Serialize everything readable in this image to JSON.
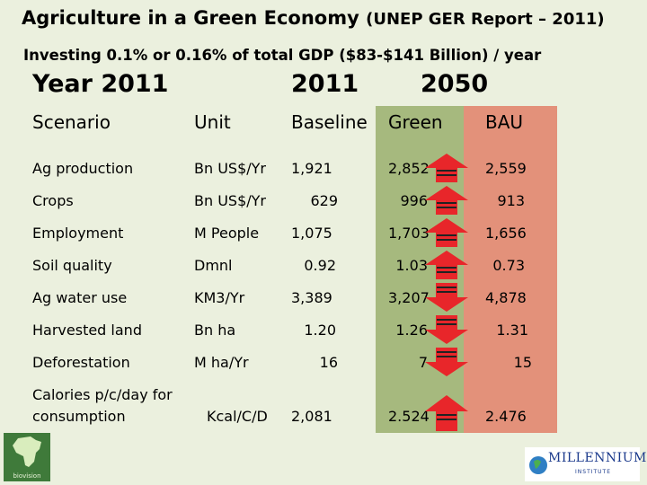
{
  "title": {
    "main": "Agriculture in a Green Economy",
    "report": "(UNEP GER Report – 2011)"
  },
  "subtitle": "Investing 0.1% or 0.16% of total GDP ($83-$141 Billion) / year",
  "year_headers": {
    "left": "Year 2011",
    "baseline_year": "2011",
    "future_year": "2050"
  },
  "table": {
    "headers": {
      "scenario": "Scenario",
      "unit": "Unit",
      "baseline": "Baseline",
      "green": "Green",
      "bau": "BAU"
    },
    "rows": [
      {
        "scenario": "Ag production",
        "unit": "Bn US$/Yr",
        "baseline": "1,921",
        "green": "2,852",
        "bau": "2,559",
        "arrow": "up"
      },
      {
        "scenario": "Crops",
        "unit": "Bn US$/Yr",
        "baseline": "629",
        "green": "996",
        "bau": "913",
        "arrow": "up"
      },
      {
        "scenario": "Employment",
        "unit": "M People",
        "baseline": "1,075",
        "green": "1,703",
        "bau": "1,656",
        "arrow": "up"
      },
      {
        "scenario": "Soil quality",
        "unit": "Dmnl",
        "baseline": "0.92",
        "green": "1.03",
        "bau": "0.73",
        "arrow": "up"
      },
      {
        "scenario": "Ag water use",
        "unit": "KM3/Yr",
        "baseline": "3,389",
        "green": "3,207",
        "bau": "4,878",
        "arrow": "down"
      },
      {
        "scenario": "Harvested land",
        "unit": "Bn ha",
        "baseline": "1.20",
        "green": "1.26",
        "bau": "1.31",
        "arrow": "down"
      },
      {
        "scenario": "Deforestation",
        "unit": "M ha/Yr",
        "baseline": "16",
        "green": "7",
        "bau": "15",
        "arrow": "down"
      },
      {
        "scenario_line1": "Calories p/c/day for",
        "scenario_line2": "consumption",
        "unit": "Kcal/C/D",
        "baseline": "2,081",
        "green": "2.524",
        "bau": "2.476",
        "arrow": "up"
      }
    ]
  },
  "logos": {
    "left": "biovision",
    "right": "MILLENNIUM",
    "right_sub": "INSTITUTE"
  },
  "colors": {
    "background": "#ebf0de",
    "green_column": "#a6b97e",
    "bau_column": "#e3917a",
    "arrow": "#e8262a"
  }
}
